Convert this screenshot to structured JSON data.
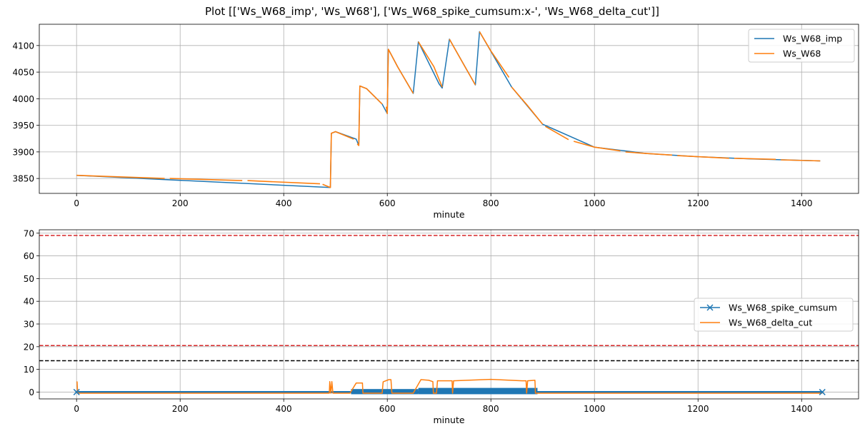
{
  "figure": {
    "title": "Plot [['Ws_W68_imp', 'Ws_W68'], ['Ws_W68_spike_cumsum:x-', 'Ws_W68_delta_cut']]"
  },
  "colors": {
    "blue": "#1f77b4",
    "orange": "#ff7f0e",
    "red": "#d62728",
    "black": "#000000",
    "grid": "#b0b0b0"
  },
  "chart_data": [
    {
      "type": "line",
      "xlabel": "minute",
      "ylabel": "",
      "xlim": [
        -72,
        1510
      ],
      "ylim": [
        3822,
        4140
      ],
      "xticks": [
        0,
        200,
        400,
        600,
        800,
        1000,
        1200,
        1400
      ],
      "yticks": [
        3850,
        3900,
        3950,
        4000,
        4050,
        4100
      ],
      "grid": true,
      "legend_position": "top-right",
      "series": [
        {
          "name": "Ws_W68_imp",
          "color": "#1f77b4",
          "points": [
            [
              0,
              3856
            ],
            [
              490,
              3833
            ],
            [
              492,
              3935
            ],
            [
              500,
              3938
            ],
            [
              540,
              3924
            ],
            [
              545,
              3912
            ],
            [
              547,
              4024
            ],
            [
              560,
              4019
            ],
            [
              590,
              3990
            ],
            [
              600,
              3972
            ],
            [
              602,
              4093
            ],
            [
              620,
              4060
            ],
            [
              650,
              4010
            ],
            [
              660,
              4107
            ],
            [
              700,
              4028
            ],
            [
              706,
              4020
            ],
            [
              720,
              4112
            ],
            [
              770,
              4026
            ],
            [
              778,
              4126
            ],
            [
              840,
              4022
            ],
            [
              900,
              3952
            ],
            [
              1000,
              3909
            ],
            [
              1100,
              3897
            ],
            [
              1200,
              3891
            ],
            [
              1300,
              3887
            ],
            [
              1436,
              3883
            ]
          ]
        },
        {
          "name": "Ws_W68",
          "color": "#ff7f0e",
          "segments": [
            [
              [
                0,
                3856
              ],
              [
                170,
                3850
              ]
            ],
            [
              [
                180,
                3850
              ],
              [
                320,
                3846
              ]
            ],
            [
              [
                330,
                3846
              ],
              [
                470,
                3840
              ]
            ],
            [
              [
                475,
                3839
              ],
              [
                490,
                3833
              ],
              [
                492,
                3935
              ],
              [
                500,
                3938
              ],
              [
                535,
                3924
              ]
            ],
            [
              [
                542,
                3915
              ],
              [
                545,
                3912
              ],
              [
                547,
                4024
              ],
              [
                560,
                4019
              ],
              [
                590,
                3990
              ]
            ],
            [
              [
                598,
                3985
              ],
              [
                600,
                3972
              ],
              [
                602,
                4093
              ],
              [
                620,
                4060
              ],
              [
                650,
                4010
              ]
            ],
            [
              [
                660,
                4107
              ],
              [
                690,
                4060
              ],
              [
                706,
                4022
              ]
            ],
            [
              [
                720,
                4112
              ],
              [
                750,
                4060
              ],
              [
                770,
                4026
              ]
            ],
            [
              [
                778,
                4126
              ],
              [
                800,
                4090
              ],
              [
                835,
                4040
              ]
            ],
            [
              [
                840,
                4022
              ],
              [
                870,
                3988
              ],
              [
                900,
                3952
              ]
            ],
            [
              [
                905,
                3948
              ],
              [
                950,
                3923
              ]
            ],
            [
              [
                960,
                3920
              ],
              [
                1000,
                3909
              ],
              [
                1050,
                3902
              ]
            ],
            [
              [
                1060,
                3900
              ],
              [
                1100,
                3897
              ],
              [
                1150,
                3894
              ]
            ],
            [
              [
                1160,
                3893
              ],
              [
                1200,
                3891
              ],
              [
                1260,
                3888
              ]
            ],
            [
              [
                1270,
                3888
              ],
              [
                1350,
                3886
              ]
            ],
            [
              [
                1360,
                3885
              ],
              [
                1436,
                3883
              ]
            ]
          ]
        }
      ]
    },
    {
      "type": "line",
      "xlabel": "minute",
      "ylabel": "",
      "xlim": [
        -72,
        1510
      ],
      "ylim": [
        -3,
        71.5
      ],
      "xticks": [
        0,
        200,
        400,
        600,
        800,
        1000,
        1200,
        1400
      ],
      "yticks": [
        0,
        10,
        20,
        30,
        40,
        50,
        60,
        70
      ],
      "grid": true,
      "legend_position": "center-right",
      "hlines": [
        {
          "y": 69,
          "color": "#d62728",
          "dashed": true
        },
        {
          "y": 20.5,
          "color": "#d62728",
          "dashed": true
        },
        {
          "y": 13.8,
          "color": "#000000",
          "dashed": true
        }
      ],
      "series": [
        {
          "name": "Ws_W68_spike_cumsum",
          "color": "#1f77b4",
          "marker": "x",
          "points": [
            [
              0,
              0
            ],
            [
              1440,
              0
            ]
          ],
          "band": [
            [
              530,
              660,
              0,
              0.4
            ],
            [
              660,
              890,
              0,
              0.9
            ]
          ]
        },
        {
          "name": "Ws_W68_delta_cut",
          "color": "#ff7f0e",
          "points": [
            [
              0,
              4.5
            ],
            [
              1,
              4.5
            ],
            [
              2,
              -0.5
            ],
            [
              488,
              -0.5
            ],
            [
              489,
              4.6
            ],
            [
              491,
              -0.5
            ],
            [
              493,
              4.6
            ],
            [
              495,
              -0.5
            ],
            [
              528,
              -0.5
            ],
            [
              540,
              4
            ],
            [
              552,
              4
            ],
            [
              553,
              -0.5
            ],
            [
              590,
              -0.5
            ],
            [
              592,
              4.5
            ],
            [
              603,
              5.5
            ],
            [
              607,
              5.5
            ],
            [
              609,
              -0.5
            ],
            [
              650,
              -0.5
            ],
            [
              665,
              5.5
            ],
            [
              680,
              5.2
            ],
            [
              688,
              4.6
            ],
            [
              689,
              -0.5
            ],
            [
              695,
              -0.5
            ],
            [
              697,
              5
            ],
            [
              725,
              5
            ],
            [
              726,
              -0.5
            ],
            [
              728,
              5
            ],
            [
              800,
              5.6
            ],
            [
              860,
              5
            ],
            [
              868,
              5
            ],
            [
              869,
              -0.5
            ],
            [
              871,
              5
            ],
            [
              885,
              5.2
            ],
            [
              886,
              -0.5
            ],
            [
              1440,
              -0.5
            ]
          ]
        }
      ]
    }
  ]
}
